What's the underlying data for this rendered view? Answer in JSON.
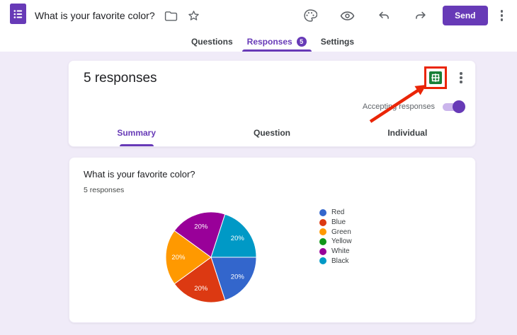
{
  "header": {
    "title": "What is your favorite color?",
    "send_button": "Send",
    "left_icons": [
      "google-forms-logo",
      "move-to-folder",
      "star"
    ],
    "toolbar_icons": [
      "customize-theme-palette",
      "preview-eye",
      "undo",
      "redo",
      "more-options"
    ]
  },
  "nav_tabs": {
    "questions": "Questions",
    "responses": "Responses",
    "responses_badge": "5",
    "settings": "Settings",
    "active": "Responses"
  },
  "responses_panel": {
    "heading": "5 responses",
    "accepting_label": "Accepting responses",
    "accepting_on": true,
    "link_to_sheets_icon": "google-sheets",
    "view_tabs": [
      "Summary",
      "Question",
      "Individual"
    ],
    "active_view_tab": "Summary"
  },
  "question_summary": {
    "title": "What is your favorite color?",
    "meta": "5 responses"
  },
  "chart_data": {
    "type": "pie",
    "title": "What is your favorite color?",
    "total_responses": 5,
    "start_angle_deg": 90,
    "direction": "clockwise",
    "labels_inside": true,
    "legend_position": "right",
    "slices": [
      {
        "label": "Red",
        "value": 1,
        "percent": "20%",
        "color": "#3366cc"
      },
      {
        "label": "Blue",
        "value": 1,
        "percent": "20%",
        "color": "#dc3912"
      },
      {
        "label": "Green",
        "value": 1,
        "percent": "20%",
        "color": "#ff9900"
      },
      {
        "label": "Yellow",
        "value": 0,
        "percent": "0%",
        "color": "#109618"
      },
      {
        "label": "White",
        "value": 1,
        "percent": "20%",
        "color": "#990099"
      },
      {
        "label": "Black",
        "value": 1,
        "percent": "20%",
        "color": "#0099c6"
      }
    ]
  },
  "annotation": {
    "description": "red box and arrow highlighting the Link to Sheets button",
    "color": "#ea2507"
  },
  "colors": {
    "accent": "#673ab7",
    "page_background": "#f0ebf8",
    "sheets_green": "#188038"
  }
}
